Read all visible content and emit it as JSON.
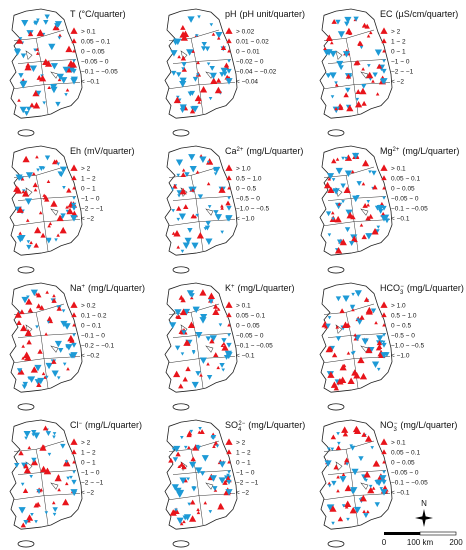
{
  "legend_symbols": [
    {
      "shape": "up",
      "size": "large",
      "color": "#e8141b"
    },
    {
      "shape": "up",
      "size": "medium",
      "color": "#e8141b"
    },
    {
      "shape": "up",
      "size": "small",
      "color": "#e8141b"
    },
    {
      "shape": "down",
      "size": "small",
      "color": "#1d9ad6"
    },
    {
      "shape": "down",
      "size": "medium",
      "color": "#1d9ad6"
    },
    {
      "shape": "down",
      "size": "large",
      "color": "#1d9ad6"
    }
  ],
  "panels": [
    {
      "name": "T",
      "unit": "(°C/quarter)",
      "legend": [
        "> 0.1",
        "0.05 ~ 0.1",
        "0 ~ 0.05",
        "−0.05 ~ 0",
        "−0.1 ~ −0.05",
        "< −0.1"
      ]
    },
    {
      "name": "pH",
      "unit": "(pH unit/quarter)",
      "legend": [
        "> 0.02",
        "0.01 ~ 0.02",
        "0 ~ 0.01",
        "−0.02 ~ 0",
        "−0.04 ~ −0.02",
        "< −0.04"
      ]
    },
    {
      "name": "EC",
      "unit": "(µS/cm/quarter)",
      "legend": [
        "> 2",
        "1 ~ 2",
        "0 ~ 1",
        "−1 ~ 0",
        "−2 ~ −1",
        "< −2"
      ]
    },
    {
      "name": "Eh",
      "unit": "(mV/quarter)",
      "legend": [
        "> 2",
        "1 ~ 2",
        "0 ~ 1",
        "−1 ~ 0",
        "−2 ~ −1",
        "< −2"
      ]
    },
    {
      "name": "Ca",
      "sup": "2+",
      "unit": "(mg/L/quarter)",
      "legend": [
        "> 1.0",
        "0.5 ~ 1.0",
        "0 ~ 0.5",
        "−0.5 ~ 0",
        "−1.0 ~ −0.5",
        "< −1.0"
      ]
    },
    {
      "name": "Mg",
      "sup": "2+",
      "unit": "(mg/L/quarter)",
      "legend": [
        "> 0.1",
        "0.05 ~ 0.1",
        "0 ~ 0.05",
        "−0.05 ~ 0",
        "−0.1 ~ −0.05",
        "< −0.1"
      ]
    },
    {
      "name": "Na",
      "sup": "+",
      "unit": "(mg/L/quarter)",
      "legend": [
        "> 0.2",
        "0.1 ~ 0.2",
        "0 ~ 0.1",
        "−0.1 ~ 0",
        "−0.2 ~ −0.1",
        "< −0.2"
      ]
    },
    {
      "name": "K",
      "sup": "+",
      "unit": "(mg/L/quarter)",
      "legend": [
        "> 0.1",
        "0.05 ~ 0.1",
        "0 ~ 0.05",
        "−0.05 ~ 0",
        "−0.1 ~ −0.05",
        "< −0.1"
      ]
    },
    {
      "name": "HCO",
      "sub": "3",
      "sup": "−",
      "unit": "(mg/L/quarter)",
      "legend": [
        "> 1.0",
        "0.5 ~ 1.0",
        "0 ~ 0.5",
        "−0.5 ~ 0",
        "−1.0 ~ −0.5",
        "< −1.0"
      ]
    },
    {
      "name": "Cl",
      "sup": "−",
      "unit": "(mg/L/quarter)",
      "legend": [
        "> 2",
        "1 ~ 2",
        "0 ~ 1",
        "−1 ~ 0",
        "−2 ~ −1",
        "< −2"
      ]
    },
    {
      "name": "SO",
      "sub": "4",
      "sup": "2−",
      "unit": "(mg/L/quarter)",
      "legend": [
        "> 2",
        "1 ~ 2",
        "0 ~ 1",
        "−1 ~ 0",
        "−2 ~ −1",
        "< −2"
      ]
    },
    {
      "name": "NO",
      "sub": "3",
      "sup": "−",
      "unit": "(mg/L/quarter)",
      "legend": [
        "> 0.1",
        "0.05 ~ 0.1",
        "0 ~ 0.05",
        "−0.05 ~ 0",
        "−0.1 ~ −0.05",
        "< −0.1"
      ]
    }
  ],
  "scale_bar": {
    "labels": [
      "0",
      "100 km",
      "200"
    ],
    "north": "N"
  }
}
